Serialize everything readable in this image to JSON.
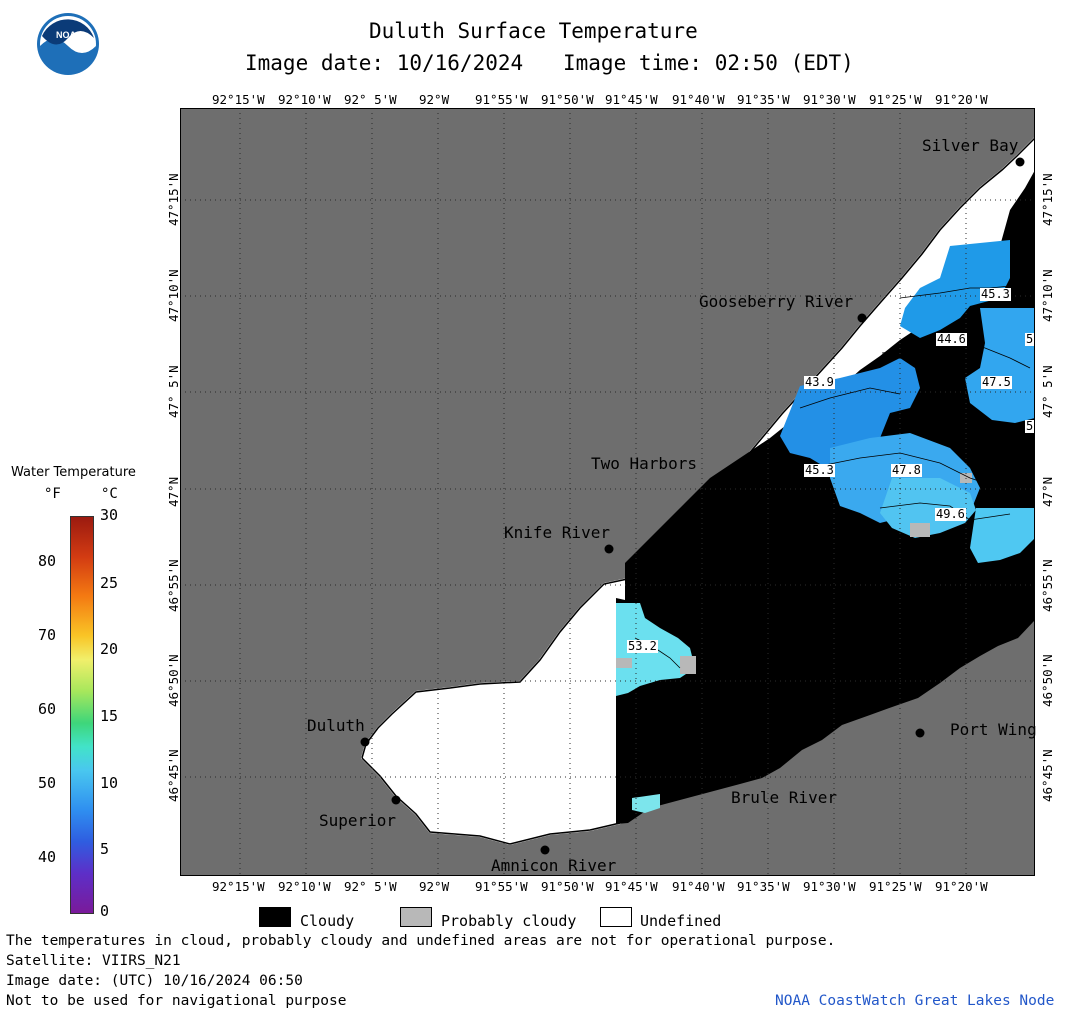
{
  "header": {
    "title": "Duluth Surface Temperature",
    "image_date": "Image date: 10/16/2024",
    "image_time": "Image time: 02:50 (EDT)",
    "logo_text": "NOAA"
  },
  "map": {
    "lon_labels": [
      "92°15'W",
      "92°10'W",
      "92° 5'W",
      "92°W",
      "91°55'W",
      "91°50'W",
      "91°45'W",
      "91°40'W",
      "91°35'W",
      "91°30'W",
      "91°25'W",
      "91°20'W"
    ],
    "lat_labels": [
      "47°15'N",
      "47°10'N",
      "47° 5'N",
      "47°N",
      "46°55'N",
      "46°50'N",
      "46°45'N"
    ],
    "places": [
      {
        "name": "Silver Bay"
      },
      {
        "name": "Gooseberry River"
      },
      {
        "name": "Two Harbors"
      },
      {
        "name": "Knife River"
      },
      {
        "name": "Duluth"
      },
      {
        "name": "Superior"
      },
      {
        "name": "Amnicon River"
      },
      {
        "name": "Brule River"
      },
      {
        "name": "Port Wing"
      }
    ],
    "isotherm_labels": [
      "45.3",
      "44.6",
      "5",
      "47.5",
      "43.9",
      "5",
      "45.3",
      "47.8",
      "49.6",
      "53.2"
    ],
    "colors": {
      "land": "#6e6e6e",
      "cloud": "#000000",
      "prob_cloud": "#b8b8b8",
      "undefined": "#ffffff"
    }
  },
  "colorbar": {
    "title": "Water Temperature",
    "unit_f": "°F",
    "unit_c": "°C",
    "f_ticks": [
      "80",
      "70",
      "60",
      "50",
      "40"
    ],
    "c_ticks": [
      "30",
      "25",
      "20",
      "15",
      "10",
      "5",
      "0"
    ]
  },
  "legend": {
    "cloudy": "Cloudy",
    "probably_cloudy": "Probably cloudy",
    "undefined": "Undefined"
  },
  "footer": {
    "line1": "The temperatures in cloud, probably cloudy and undefined areas are not for operational purpose.",
    "line2": "Satellite: VIIRS_N21",
    "line3": "Image date: (UTC) 10/16/2024  06:50",
    "line4": "Not to be used for navigational purpose",
    "credit": "NOAA CoastWatch Great Lakes Node"
  }
}
